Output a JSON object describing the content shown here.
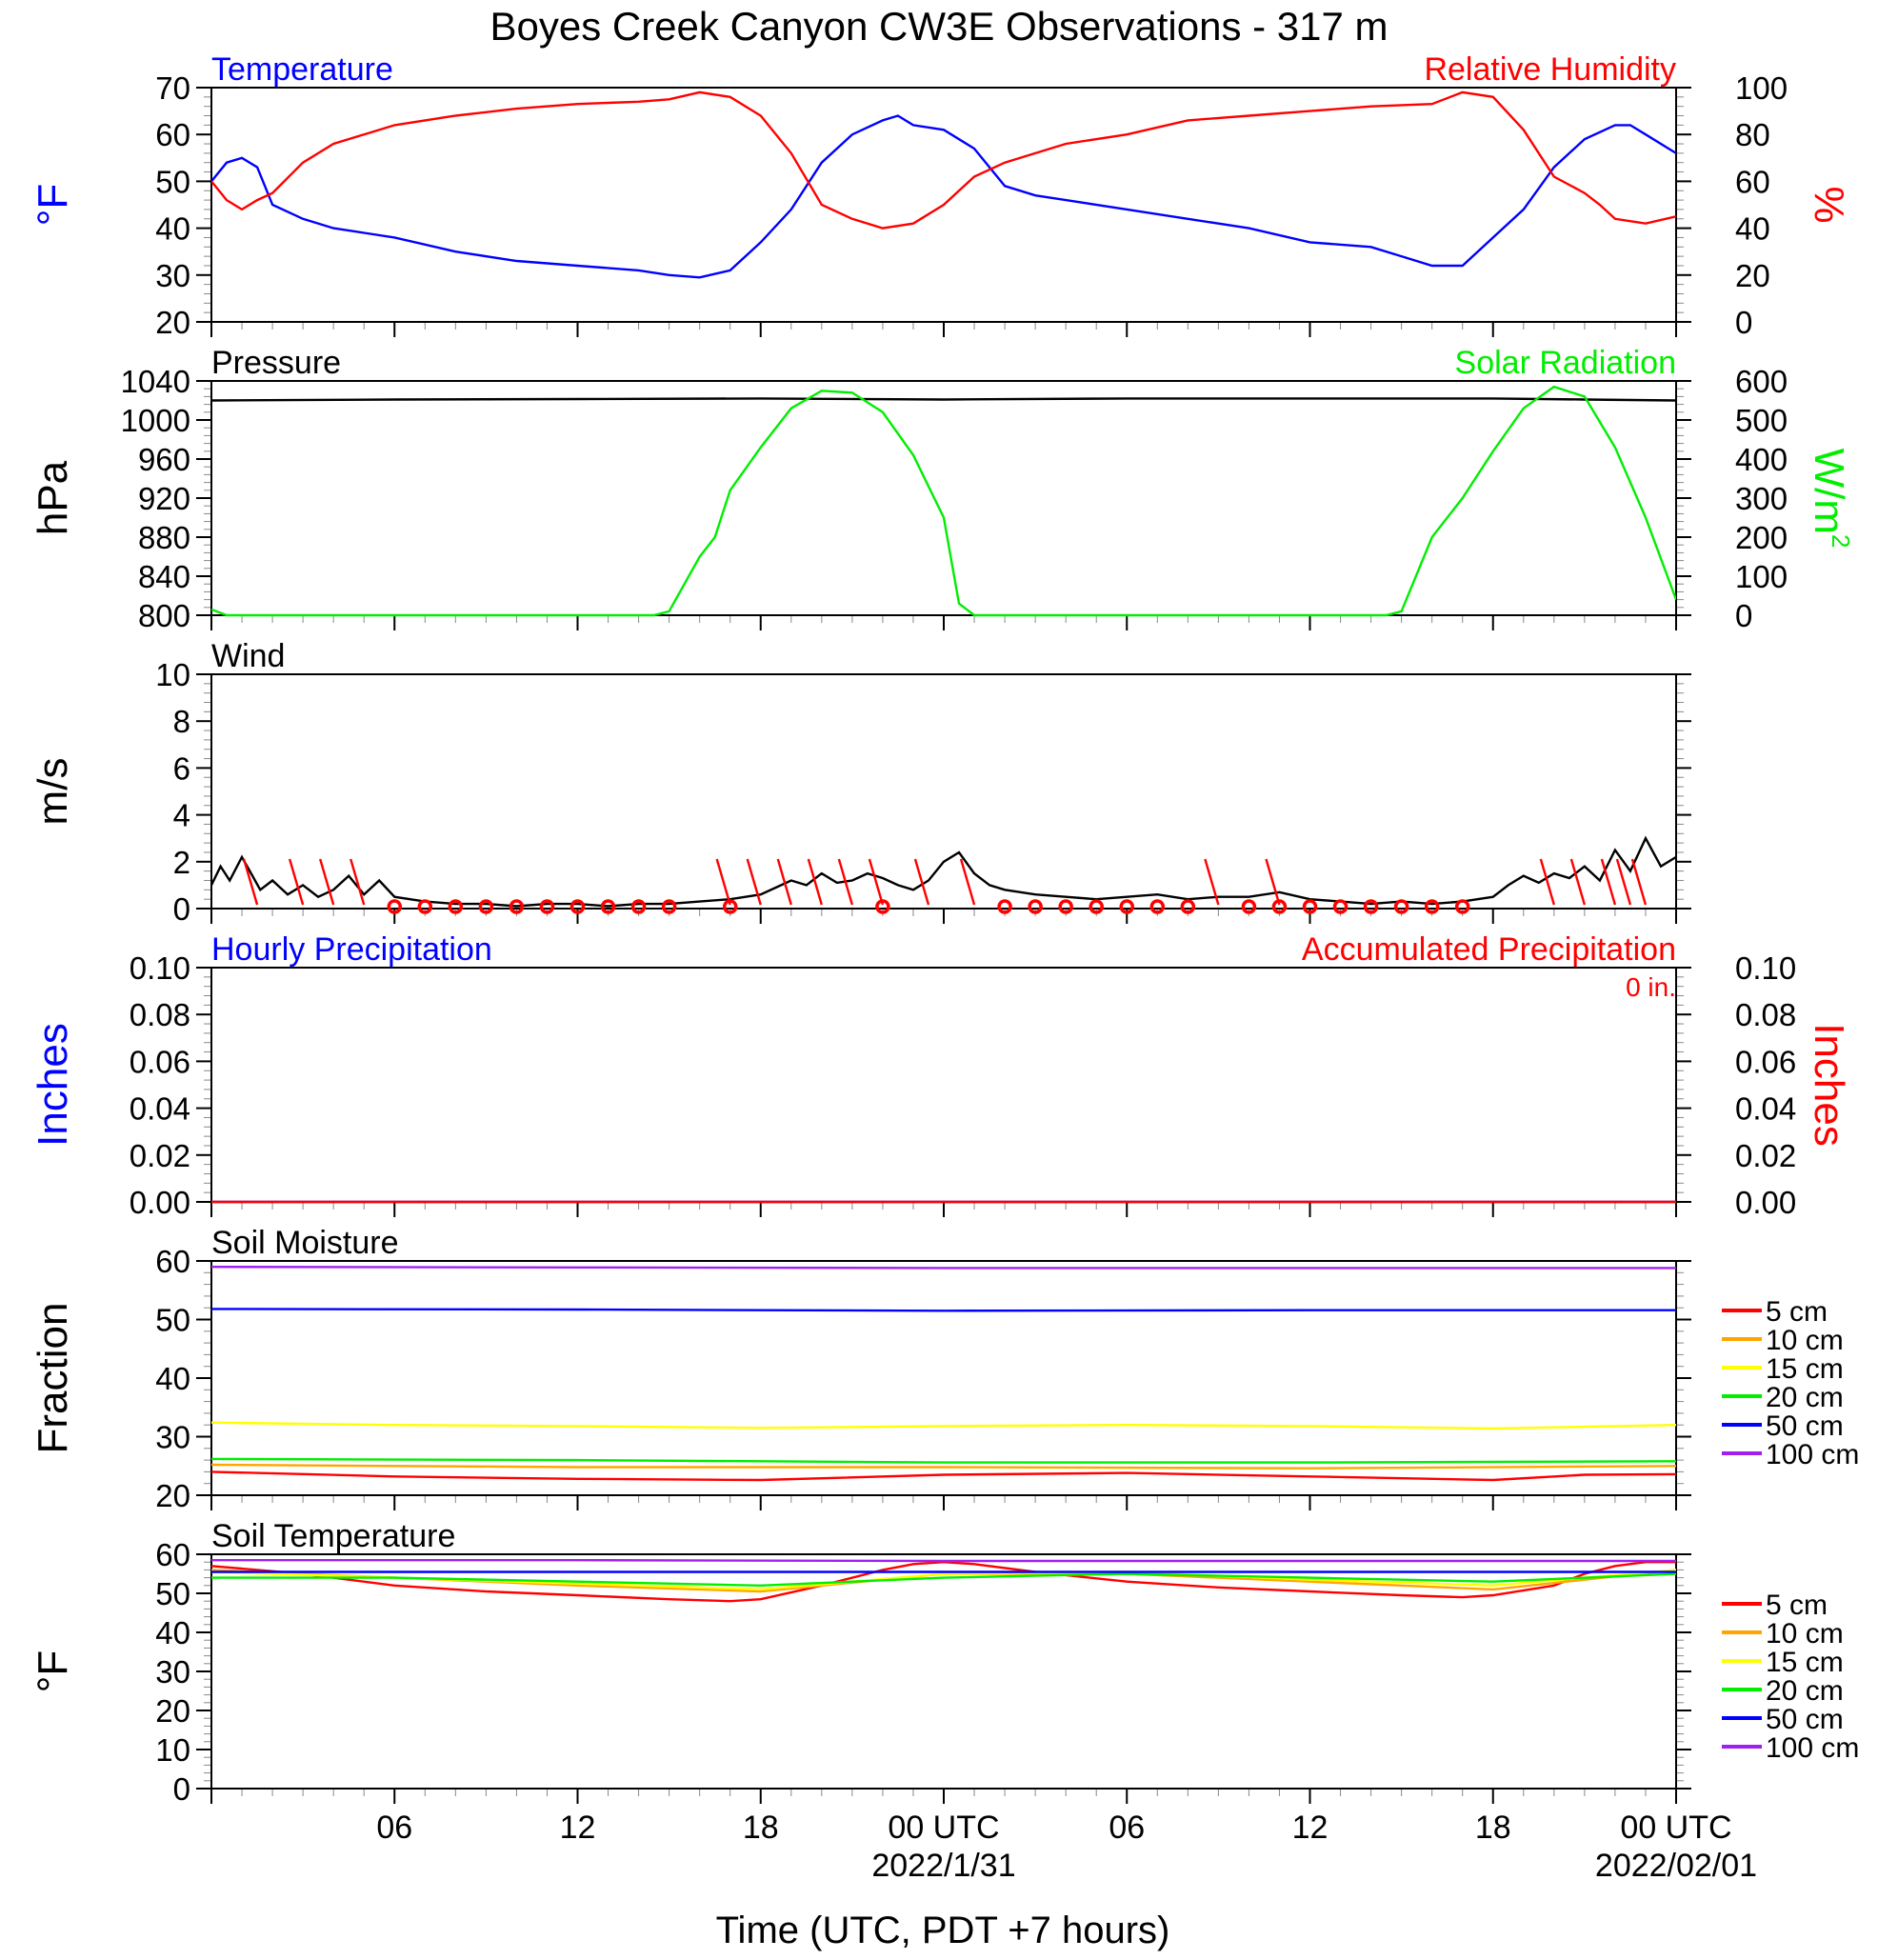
{
  "page_title": "Boyes Creek Canyon CW3E Observations - 317 m",
  "x_axis": {
    "label": "Time (UTC, PDT +7 hours)",
    "range_hours": [
      0,
      48
    ],
    "ticks": [
      {
        "hour": 6,
        "label": "06",
        "date": ""
      },
      {
        "hour": 12,
        "label": "12",
        "date": ""
      },
      {
        "hour": 18,
        "label": "18",
        "date": ""
      },
      {
        "hour": 24,
        "label": "00 UTC",
        "date": "2022/1/31"
      },
      {
        "hour": 30,
        "label": "06",
        "date": ""
      },
      {
        "hour": 36,
        "label": "12",
        "date": ""
      },
      {
        "hour": 42,
        "label": "18",
        "date": ""
      },
      {
        "hour": 48,
        "label": "00 UTC",
        "date": "2022/02/01"
      }
    ]
  },
  "colors": {
    "temperature": "#0000ff",
    "humidity": "#ff0000",
    "pressure": "#000000",
    "solar": "#00ee00",
    "wind": "#000000",
    "barb": "#ff0000"
  },
  "chart_data": [
    {
      "id": "temperature-rh",
      "type": "line",
      "title_left": "Temperature",
      "title_right": "Relative Humidity",
      "ylabel_left": "°F",
      "ylabel_right": "%",
      "ylim_left": [
        20,
        70
      ],
      "yticks_left": [
        "20",
        "30",
        "40",
        "50",
        "60",
        "70"
      ],
      "ylim_right": [
        0,
        100
      ],
      "yticks_right": [
        "0",
        "20",
        "40",
        "60",
        "80",
        "100"
      ],
      "series": [
        {
          "name": "Temperature",
          "axis": "left",
          "color": "#0000ff",
          "x": [
            0,
            0.5,
            1,
            1.5,
            2,
            3,
            4,
            5,
            6,
            8,
            10,
            12,
            14,
            15,
            16,
            17,
            18,
            19,
            20,
            21,
            22,
            22.5,
            23,
            24,
            25,
            26,
            27,
            28,
            30,
            32,
            34,
            36,
            38,
            39,
            40,
            41,
            42,
            43,
            44,
            45,
            46,
            46.5,
            47,
            48
          ],
          "y": [
            50,
            54,
            55,
            53,
            45,
            42,
            40,
            39,
            38,
            35,
            33,
            32,
            31,
            30,
            29.5,
            31,
            37,
            44,
            54,
            60,
            63,
            64,
            62,
            61,
            57,
            49,
            47,
            46,
            44,
            42,
            40,
            37,
            36,
            34,
            32,
            32,
            38,
            44,
            53,
            59,
            62,
            62,
            60,
            56
          ]
        },
        {
          "name": "Relative Humidity",
          "axis": "right",
          "color": "#ff0000",
          "x": [
            0,
            0.5,
            1,
            1.5,
            2,
            3,
            4,
            6,
            8,
            10,
            12,
            14,
            15,
            16,
            17,
            18,
            19,
            20,
            21,
            22,
            23,
            24,
            25,
            26,
            27,
            28,
            30,
            32,
            34,
            36,
            38,
            40,
            41,
            42,
            43,
            44,
            45,
            45.5,
            46,
            47,
            48
          ],
          "y": [
            60,
            52,
            48,
            52,
            55,
            68,
            76,
            84,
            88,
            91,
            93,
            94,
            95,
            98,
            96,
            88,
            72,
            50,
            44,
            40,
            42,
            50,
            62,
            68,
            72,
            76,
            80,
            86,
            88,
            90,
            92,
            93,
            98,
            96,
            82,
            62,
            55,
            50,
            44,
            42,
            45
          ]
        }
      ]
    },
    {
      "id": "pressure-solar",
      "type": "line",
      "title_left": "Pressure",
      "title_right": "Solar Radiation",
      "ylabel_left": "hPa",
      "ylabel_right": "W/m",
      "ylabel_right_sup": "2",
      "ylim_left": [
        800,
        1040
      ],
      "yticks_left": [
        "800",
        "840",
        "880",
        "920",
        "960",
        "1000",
        "1040"
      ],
      "ylim_right": [
        0,
        600
      ],
      "yticks_right": [
        "0",
        "100",
        "200",
        "300",
        "400",
        "500",
        "600"
      ],
      "series": [
        {
          "name": "Pressure",
          "axis": "left",
          "color": "#000000",
          "x": [
            0,
            6,
            12,
            18,
            24,
            30,
            36,
            42,
            45,
            48
          ],
          "y": [
            1020,
            1021,
            1021.5,
            1022,
            1021,
            1022,
            1022,
            1022,
            1021,
            1020
          ]
        },
        {
          "name": "Solar Radiation",
          "axis": "right",
          "color": "#00ee00",
          "x": [
            0,
            0.5,
            14.5,
            15,
            16,
            16.5,
            17,
            18,
            19,
            20,
            21,
            22,
            23,
            24,
            24.5,
            25,
            38.5,
            39,
            40,
            41,
            42,
            43,
            44,
            45,
            46,
            47,
            48
          ],
          "y": [
            15,
            0,
            0,
            10,
            150,
            200,
            320,
            430,
            530,
            575,
            570,
            520,
            410,
            250,
            30,
            0,
            0,
            10,
            200,
            300,
            420,
            530,
            585,
            560,
            430,
            250,
            40
          ]
        }
      ]
    },
    {
      "id": "wind",
      "type": "line",
      "title_left": "Wind",
      "ylabel_left": "m/s",
      "ylim_left": [
        0,
        10
      ],
      "yticks_left": [
        "0",
        "2",
        "4",
        "6",
        "8",
        "10"
      ],
      "series": [
        {
          "name": "Wind speed",
          "axis": "left",
          "color": "#000000",
          "x": [
            0,
            0.3,
            0.6,
            1,
            1.3,
            1.6,
            2,
            2.5,
            3,
            3.5,
            4,
            4.5,
            5,
            5.5,
            6,
            7,
            8,
            9,
            10,
            11,
            12,
            13,
            14,
            15,
            16,
            17,
            18,
            18.5,
            19,
            19.5,
            20,
            20.5,
            21,
            21.5,
            22,
            22.5,
            23,
            23.5,
            24,
            24.5,
            25,
            25.5,
            26,
            27,
            28,
            29,
            30,
            31,
            32,
            33,
            34,
            35,
            36,
            37,
            38,
            39,
            40,
            41,
            42,
            42.5,
            43,
            43.5,
            44,
            44.5,
            45,
            45.5,
            46,
            46.5,
            47,
            47.5,
            48
          ],
          "y": [
            1.0,
            1.8,
            1.2,
            2.2,
            1.5,
            0.8,
            1.2,
            0.6,
            1.0,
            0.5,
            0.8,
            1.4,
            0.6,
            1.2,
            0.5,
            0.3,
            0.2,
            0.2,
            0.1,
            0.2,
            0.2,
            0.1,
            0.2,
            0.2,
            0.3,
            0.4,
            0.6,
            0.9,
            1.2,
            1.0,
            1.5,
            1.1,
            1.2,
            1.5,
            1.3,
            1.0,
            0.8,
            1.2,
            2.0,
            2.4,
            1.5,
            1.0,
            0.8,
            0.6,
            0.5,
            0.4,
            0.5,
            0.6,
            0.4,
            0.5,
            0.5,
            0.7,
            0.4,
            0.3,
            0.2,
            0.3,
            0.2,
            0.3,
            0.5,
            1.0,
            1.4,
            1.1,
            1.5,
            1.3,
            1.8,
            1.2,
            2.5,
            1.6,
            3.0,
            1.8,
            2.2
          ]
        }
      ],
      "barbs_hours": [
        1.5,
        3,
        4,
        5,
        17,
        18,
        19,
        20,
        21,
        22,
        23.5,
        25,
        33,
        35,
        44,
        45,
        46,
        46.5,
        47
      ],
      "calm_hours": [
        6,
        7,
        8,
        9,
        10,
        11,
        12,
        13,
        14,
        15,
        17,
        22,
        26,
        27,
        28,
        29,
        30,
        31,
        32,
        34,
        35,
        36,
        37,
        38,
        39,
        40,
        41
      ]
    },
    {
      "id": "precipitation",
      "type": "line",
      "title_left": "Hourly Precipitation",
      "title_right": "Accumulated Precipitation",
      "annotation": "0 in.",
      "ylabel_left": "Inches",
      "ylabel_right": "Inches",
      "ylim_left": [
        0,
        0.1
      ],
      "yticks_left": [
        "0.00",
        "0.02",
        "0.04",
        "0.06",
        "0.08",
        "0.10"
      ],
      "ylim_right": [
        0,
        0.1
      ],
      "yticks_right": [
        "0.00",
        "0.02",
        "0.04",
        "0.06",
        "0.08",
        "0.10"
      ],
      "series": [
        {
          "name": "Hourly Precipitation",
          "axis": "left",
          "color": "#0000ff",
          "x": [
            0,
            48
          ],
          "y": [
            0,
            0
          ]
        },
        {
          "name": "Accumulated Precipitation",
          "axis": "left",
          "color": "#ff0000",
          "x": [
            0,
            48
          ],
          "y": [
            0,
            0
          ]
        }
      ]
    },
    {
      "id": "soil-moisture",
      "type": "line",
      "title_left": "Soil Moisture",
      "ylabel_left": "Fraction",
      "ylim_left": [
        20,
        60
      ],
      "yticks_left": [
        "20",
        "30",
        "40",
        "50",
        "60"
      ],
      "legend": [
        {
          "name": "5 cm",
          "color": "#ff0000"
        },
        {
          "name": "10 cm",
          "color": "#ffa500"
        },
        {
          "name": "15 cm",
          "color": "#ffff00"
        },
        {
          "name": "20 cm",
          "color": "#00ee00"
        },
        {
          "name": "50 cm",
          "color": "#0000ff"
        },
        {
          "name": "100 cm",
          "color": "#a020f0"
        }
      ],
      "series": [
        {
          "name": "5 cm",
          "color": "#ff0000",
          "x": [
            0,
            6,
            12,
            18,
            24,
            30,
            36,
            42,
            45,
            48
          ],
          "y": [
            24,
            23.2,
            22.8,
            22.6,
            23.5,
            23.8,
            23.2,
            22.6,
            23.5,
            23.6
          ]
        },
        {
          "name": "10 cm",
          "color": "#ffa500",
          "x": [
            0,
            12,
            24,
            36,
            48
          ],
          "y": [
            25.2,
            24.8,
            24.8,
            24.6,
            25.0
          ]
        },
        {
          "name": "15 cm",
          "color": "#ffff00",
          "x": [
            0,
            6,
            12,
            18,
            24,
            30,
            36,
            42,
            48
          ],
          "y": [
            32.4,
            32.0,
            31.8,
            31.5,
            31.8,
            32.0,
            31.8,
            31.4,
            32.0
          ]
        },
        {
          "name": "20 cm",
          "color": "#00ee00",
          "x": [
            0,
            12,
            24,
            36,
            48
          ],
          "y": [
            26.2,
            26.0,
            25.6,
            25.6,
            25.8
          ]
        },
        {
          "name": "50 cm",
          "color": "#0000ff",
          "x": [
            0,
            12,
            24,
            36,
            48
          ],
          "y": [
            51.8,
            51.7,
            51.5,
            51.6,
            51.6
          ]
        },
        {
          "name": "100 cm",
          "color": "#a020f0",
          "x": [
            0,
            12,
            24,
            36,
            48
          ],
          "y": [
            59.0,
            58.9,
            58.8,
            58.8,
            58.8
          ]
        }
      ]
    },
    {
      "id": "soil-temperature",
      "type": "line",
      "title_left": "Soil Temperature",
      "ylabel_left": "°F",
      "ylim_left": [
        0,
        60
      ],
      "yticks_left": [
        "0",
        "10",
        "20",
        "30",
        "40",
        "50",
        "60"
      ],
      "legend": [
        {
          "name": "5 cm",
          "color": "#ff0000"
        },
        {
          "name": "10 cm",
          "color": "#ffa500"
        },
        {
          "name": "15 cm",
          "color": "#ffff00"
        },
        {
          "name": "20 cm",
          "color": "#00ee00"
        },
        {
          "name": "50 cm",
          "color": "#0000ff"
        },
        {
          "name": "100 cm",
          "color": "#a020f0"
        }
      ],
      "series": [
        {
          "name": "5 cm",
          "color": "#ff0000",
          "x": [
            0,
            3,
            6,
            9,
            12,
            15,
            17,
            18,
            20,
            22,
            23,
            24,
            25,
            27,
            30,
            33,
            36,
            39,
            41,
            42,
            44,
            45,
            46,
            47,
            48
          ],
          "y": [
            57,
            55,
            52,
            50.5,
            49.5,
            48.5,
            48,
            48.5,
            52,
            56,
            57.5,
            58,
            57.5,
            55.5,
            53,
            51.5,
            50.5,
            49.5,
            49,
            49.5,
            52,
            55,
            57,
            58,
            58
          ]
        },
        {
          "name": "10 cm",
          "color": "#ffa500",
          "x": [
            0,
            6,
            12,
            18,
            24,
            30,
            36,
            42,
            48
          ],
          "y": [
            56,
            54,
            52,
            50.5,
            55,
            55,
            53,
            51,
            56
          ]
        },
        {
          "name": "15 cm",
          "color": "#ffff00",
          "x": [
            0,
            6,
            12,
            18,
            24,
            30,
            36,
            42,
            48
          ],
          "y": [
            55.5,
            54,
            52.5,
            51,
            55,
            55.5,
            53.5,
            52,
            56
          ]
        },
        {
          "name": "20 cm",
          "color": "#00ee00",
          "x": [
            0,
            6,
            12,
            18,
            24,
            30,
            36,
            42,
            48
          ],
          "y": [
            54,
            54,
            53,
            52,
            54,
            55,
            54,
            53,
            55
          ]
        },
        {
          "name": "50 cm",
          "color": "#0000ff",
          "x": [
            0,
            12,
            24,
            36,
            48
          ],
          "y": [
            55.5,
            55.5,
            55.5,
            55.5,
            55.5
          ]
        },
        {
          "name": "100 cm",
          "color": "#a020f0",
          "x": [
            0,
            12,
            24,
            36,
            48
          ],
          "y": [
            58.5,
            58.5,
            58.3,
            58.3,
            58.3
          ]
        }
      ]
    }
  ]
}
